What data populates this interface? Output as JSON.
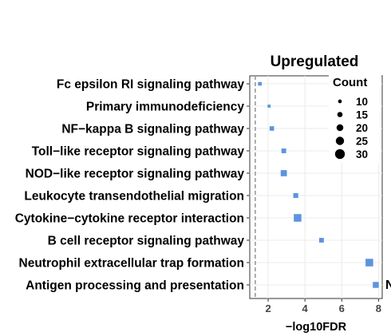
{
  "chart_data": {
    "type": "scatter",
    "title": "Upregulated",
    "xlabel": "−log10FDR",
    "ylabel": "",
    "xlim": [
      1,
      8.2
    ],
    "xticks": [
      2,
      4,
      6,
      8
    ],
    "grid": true,
    "legend_position": "top-right",
    "legend_title": "Count",
    "legend_sizes": [
      10,
      15,
      20,
      25,
      30
    ],
    "marker_color": "#5b94df",
    "threshold_x": 1.3,
    "categories": [
      "Fc epsilon RI signaling pathway",
      "Primary immunodeficiency",
      "NF−kappa B signaling pathway",
      "Toll−like receptor signaling pathway",
      "NOD−like receptor signaling pathway",
      "Leukocyte transendothelial migration",
      "Cytokine−cytokine receptor interaction",
      "B cell receptor signaling pathway",
      "Neutrophil extracellular trap formation",
      "Antigen processing and presentation"
    ],
    "points": [
      {
        "x": 1.55,
        "count": 8
      },
      {
        "x": 2.05,
        "count": 5
      },
      {
        "x": 2.2,
        "count": 12
      },
      {
        "x": 2.85,
        "count": 13
      },
      {
        "x": 2.85,
        "count": 20
      },
      {
        "x": 3.5,
        "count": 14
      },
      {
        "x": 3.6,
        "count": 27
      },
      {
        "x": 4.9,
        "count": 13
      },
      {
        "x": 7.5,
        "count": 27
      },
      {
        "x": 7.85,
        "count": 19
      }
    ]
  },
  "edge_text": "N"
}
